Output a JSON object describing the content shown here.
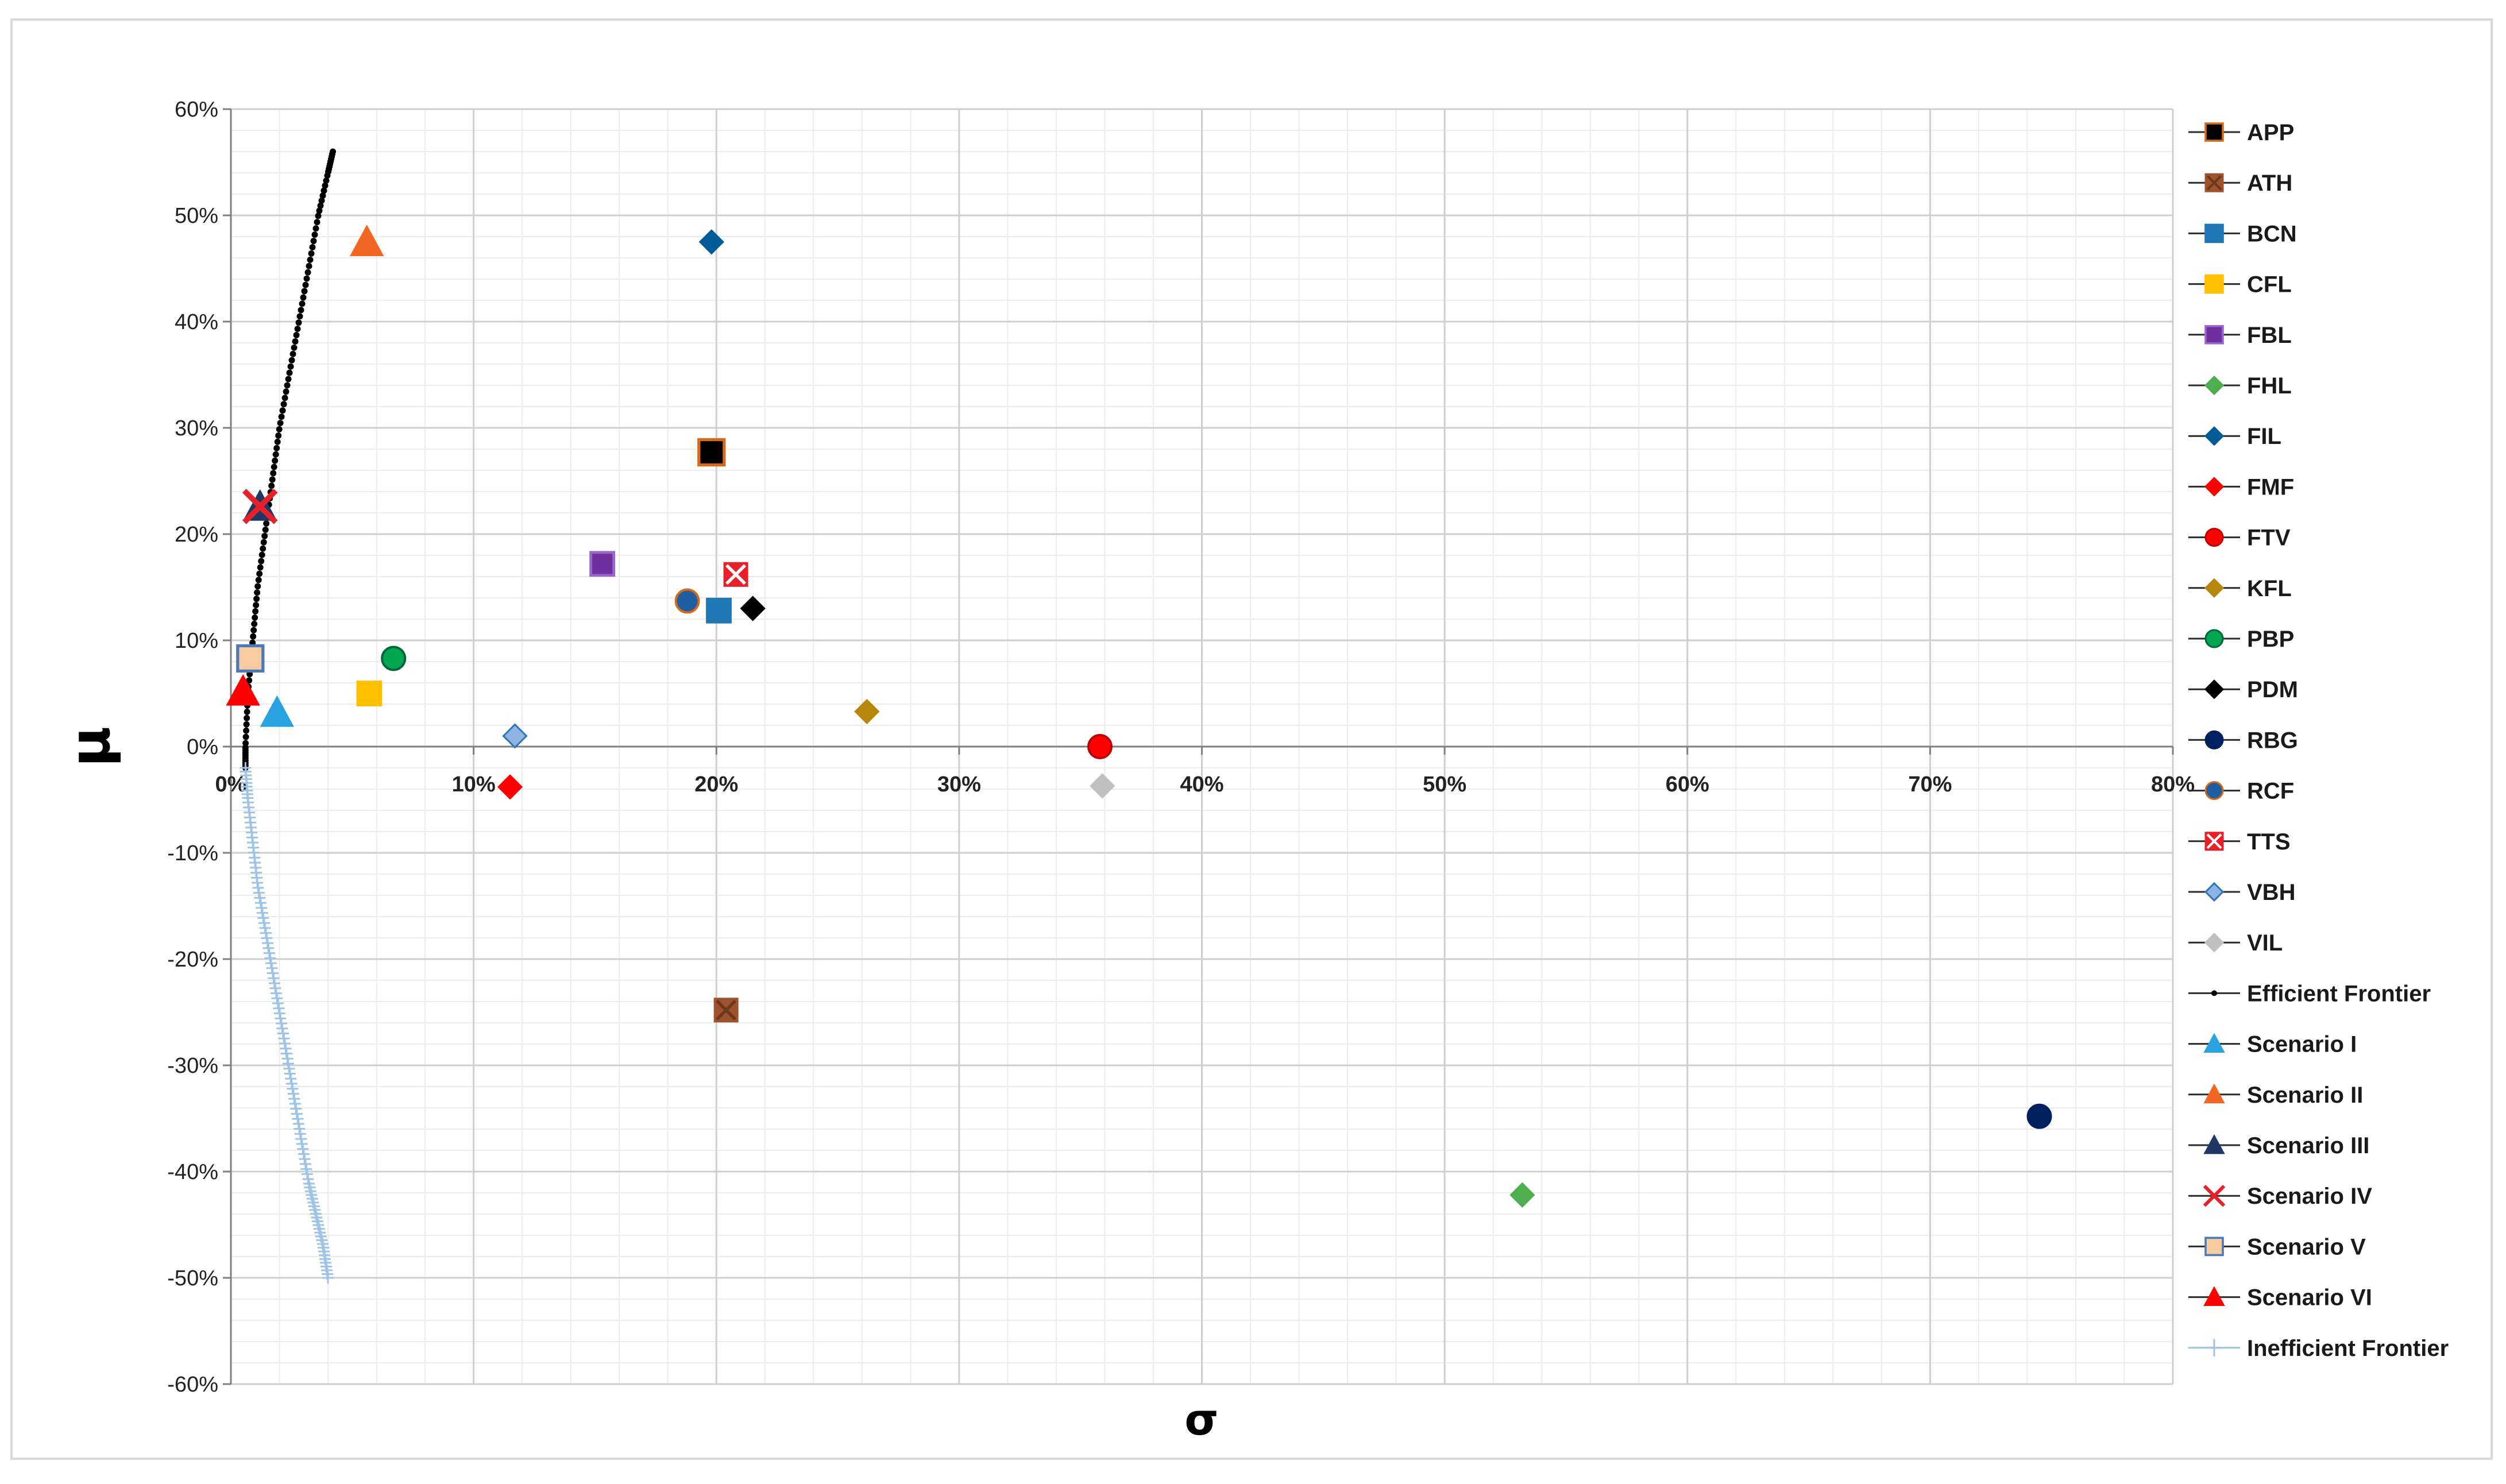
{
  "chart_data": {
    "type": "scatter",
    "xlabel": "σ",
    "ylabel": "μ",
    "xlim": [
      0,
      0.8
    ],
    "ylim": [
      -0.6,
      0.6
    ],
    "x_ticks": [
      "0%",
      "10%",
      "20%",
      "30%",
      "40%",
      "50%",
      "60%",
      "70%",
      "80%"
    ],
    "y_ticks": [
      "60%",
      "50%",
      "40%",
      "30%",
      "20%",
      "10%",
      "0%",
      "-10%",
      "-20%",
      "-30%",
      "-40%",
      "-50%",
      "-60%"
    ],
    "grid": true,
    "legend_position": "right",
    "series": [
      {
        "name": "APP",
        "marker": "square",
        "color": "#000000",
        "stroke": "#d46a1a",
        "x": [
          0.198
        ],
        "y": [
          0.277
        ]
      },
      {
        "name": "ATH",
        "marker": "square-x",
        "color": "#a0522d",
        "stroke": "#6b3a1c",
        "x": [
          0.204
        ],
        "y": [
          -0.248
        ]
      },
      {
        "name": "BCN",
        "marker": "square",
        "color": "#1f77b4",
        "x": [
          0.201
        ],
        "y": [
          0.128
        ]
      },
      {
        "name": "CFL",
        "marker": "square",
        "color": "#ffc000",
        "x": [
          0.057
        ],
        "y": [
          0.05
        ]
      },
      {
        "name": "FBL",
        "marker": "square",
        "color": "#7030a0",
        "stroke": "#9966cc",
        "x": [
          0.153
        ],
        "y": [
          0.172
        ]
      },
      {
        "name": "FHL",
        "marker": "diamond",
        "color": "#4cae4c",
        "x": [
          0.532
        ],
        "y": [
          -0.422
        ]
      },
      {
        "name": "FIL",
        "marker": "diamond",
        "color": "#005b96",
        "x": [
          0.198
        ],
        "y": [
          0.475
        ]
      },
      {
        "name": "FMF",
        "marker": "diamond",
        "color": "#ff0000",
        "x": [
          0.115
        ],
        "y": [
          -0.038
        ]
      },
      {
        "name": "FTV",
        "marker": "circle",
        "color": "#ff0000",
        "stroke": "#c00000",
        "x": [
          0.358
        ],
        "y": [
          0.0
        ]
      },
      {
        "name": "KFL",
        "marker": "diamond",
        "color": "#b8860b",
        "x": [
          0.262
        ],
        "y": [
          0.033
        ]
      },
      {
        "name": "PBP",
        "marker": "circle",
        "color": "#00a651",
        "stroke": "#006837",
        "x": [
          0.067
        ],
        "y": [
          0.083
        ]
      },
      {
        "name": "PDM",
        "marker": "diamond",
        "color": "#000000",
        "x": [
          0.215
        ],
        "y": [
          0.13
        ]
      },
      {
        "name": "RBG",
        "marker": "circle",
        "color": "#002060",
        "x": [
          0.745
        ],
        "y": [
          -0.348
        ]
      },
      {
        "name": "RCF",
        "marker": "circle",
        "color": "#1f5fa0",
        "stroke": "#d46a1a",
        "x": [
          0.188
        ],
        "y": [
          0.137
        ]
      },
      {
        "name": "TTS",
        "marker": "square-x",
        "color": "#e8202a",
        "stroke": "#ffffff",
        "x": [
          0.208
        ],
        "y": [
          0.162
        ]
      },
      {
        "name": "VBH",
        "marker": "diamond",
        "color": "#8db4e2",
        "stroke": "#2e75b6",
        "x": [
          0.117
        ],
        "y": [
          0.01
        ]
      },
      {
        "name": "VIL",
        "marker": "diamond",
        "color": "#c0c0c0",
        "x": [
          0.359
        ],
        "y": [
          -0.037
        ]
      },
      {
        "name": "Scenario I",
        "marker": "triangle",
        "color": "#29a3e0",
        "x": [
          0.019
        ],
        "y": [
          0.032
        ]
      },
      {
        "name": "Scenario II",
        "marker": "triangle",
        "color": "#f26522",
        "x": [
          0.056
        ],
        "y": [
          0.475
        ]
      },
      {
        "name": "Scenario III",
        "marker": "triangle",
        "color": "#1f3864",
        "x": [
          0.012
        ],
        "y": [
          0.226
        ]
      },
      {
        "name": "Scenario IV",
        "marker": "x",
        "color": "#e8202a",
        "x": [
          0.012
        ],
        "y": [
          0.226
        ]
      },
      {
        "name": "Scenario V",
        "marker": "square",
        "color": "#f8cba0",
        "stroke": "#4a7ab8",
        "x": [
          0.008
        ],
        "y": [
          0.083
        ]
      },
      {
        "name": "Scenario VI",
        "marker": "triangle",
        "color": "#ff0000",
        "x": [
          0.005
        ],
        "y": [
          0.052
        ]
      }
    ],
    "frontiers": [
      {
        "name": "Efficient Frontier",
        "marker": "dot",
        "color": "#000000",
        "x": [
          0.006,
          0.006,
          0.007,
          0.009,
          0.011,
          0.014,
          0.017,
          0.02,
          0.024,
          0.028,
          0.032,
          0.036,
          0.04,
          0.042
        ],
        "y": [
          -0.02,
          0.0,
          0.05,
          0.1,
          0.15,
          0.2,
          0.25,
          0.3,
          0.35,
          0.4,
          0.45,
          0.5,
          0.54,
          0.56
        ]
      },
      {
        "name": "Inefficient Frontier",
        "marker": "plus",
        "color": "#9dc3e6",
        "x": [
          0.006,
          0.007,
          0.009,
          0.011,
          0.014,
          0.017,
          0.02,
          0.023,
          0.026,
          0.029,
          0.032,
          0.035,
          0.038,
          0.04
        ],
        "y": [
          -0.02,
          -0.05,
          -0.09,
          -0.13,
          -0.17,
          -0.21,
          -0.25,
          -0.29,
          -0.33,
          -0.37,
          -0.41,
          -0.44,
          -0.47,
          -0.5
        ]
      }
    ],
    "legend_order": [
      "APP",
      "ATH",
      "BCN",
      "CFL",
      "FBL",
      "FHL",
      "FIL",
      "FMF",
      "FTV",
      "KFL",
      "PBP",
      "PDM",
      "RBG",
      "RCF",
      "TTS",
      "VBH",
      "VIL",
      "Efficient Frontier",
      "Scenario I",
      "Scenario II",
      "Scenario III",
      "Scenario IV",
      "Scenario V",
      "Scenario VI",
      "Inefficient Frontier"
    ]
  }
}
